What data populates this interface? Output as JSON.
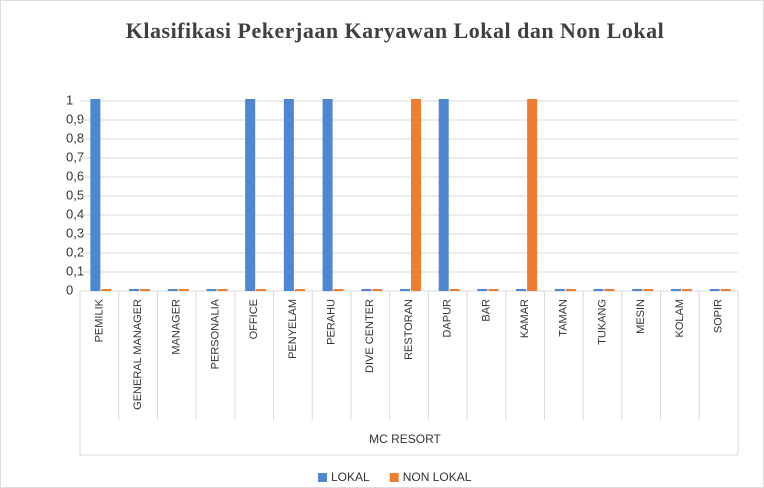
{
  "chart_data": {
    "type": "bar",
    "title": "Klasifikasi Pekerjaan Karyawan Lokal dan Non Lokal",
    "x_label": "MC RESORT",
    "categories": [
      "PEMILIK",
      "GENERAL MANAGER",
      "MANAGER",
      "PERSONALIA",
      "OFFICE",
      "PENYELAM",
      "PERAHU",
      "DIVE CENTER",
      "RESTORAN",
      "DAPUR",
      "BAR",
      "KAMAR",
      "TAMAN",
      "TUKANG",
      "MESIN",
      "KOLAM",
      "SOPIR"
    ],
    "series": [
      {
        "name": "LOKAL",
        "color": "#4f86d1",
        "values": [
          1,
          0,
          0,
          0,
          1,
          1,
          1,
          0,
          0,
          1,
          0,
          0,
          0,
          0,
          0,
          0,
          0
        ]
      },
      {
        "name": "NON LOKAL",
        "color": "#ed7d31",
        "values": [
          0,
          0,
          0,
          0,
          0,
          0,
          0,
          0,
          1,
          0,
          0,
          1,
          0,
          0,
          0,
          0,
          0
        ]
      }
    ],
    "ylim": [
      0,
      1
    ],
    "yticks": [
      0,
      {
        "value": 0.1,
        "label": "0,1"
      },
      {
        "value": 0.2,
        "label": "0,2"
      },
      {
        "value": 0.3,
        "label": "0,3"
      },
      {
        "value": 0.4,
        "label": "0,4"
      },
      {
        "value": 0.5,
        "label": "0,5"
      },
      {
        "value": 0.6,
        "label": "0,6"
      },
      {
        "value": 0.7,
        "label": "0,7"
      },
      {
        "value": 0.8,
        "label": "0,8"
      },
      {
        "value": 0.9,
        "label": "0,9"
      },
      1
    ],
    "grid": true,
    "legend": "bottom"
  }
}
